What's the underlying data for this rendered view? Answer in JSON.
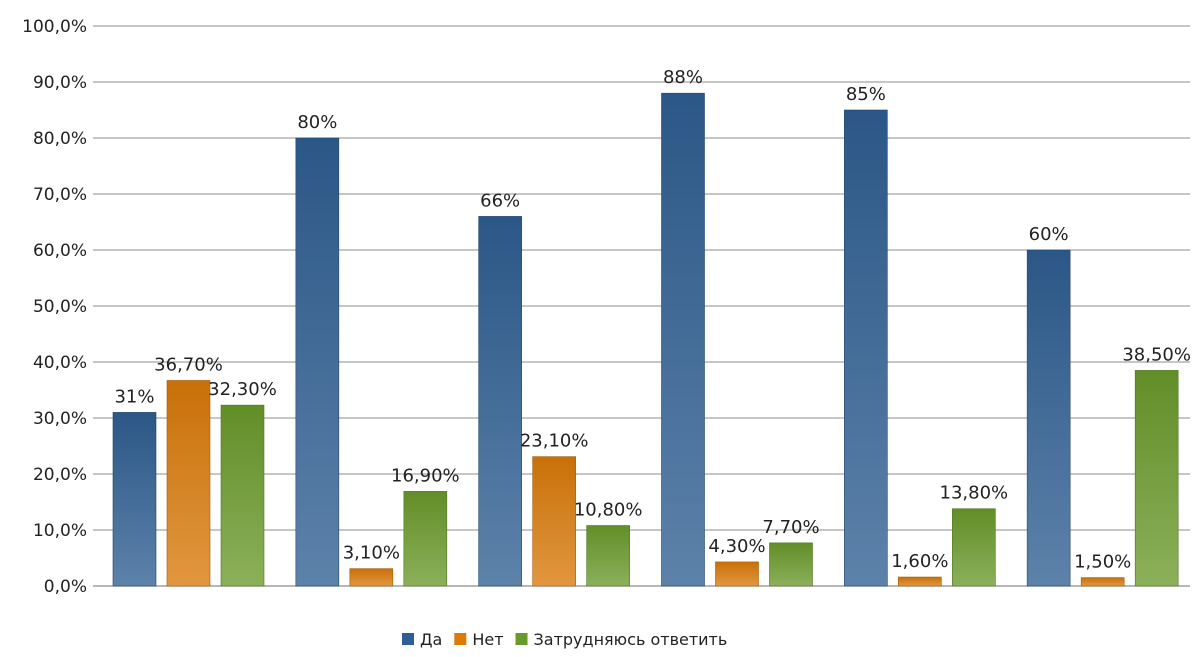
{
  "chart_data": {
    "type": "bar",
    "categories": [
      "",
      "",
      "",
      "",
      "",
      ""
    ],
    "series": [
      {
        "name": "Да",
        "color": "#2f5f92",
        "values": [
          31,
          80,
          66,
          88,
          85,
          60
        ],
        "labels": [
          "31%",
          "80%",
          "66%",
          "88%",
          "85%",
          "60%"
        ]
      },
      {
        "name": "Нет",
        "color": "#d97a0a",
        "values": [
          36.7,
          3.1,
          23.1,
          4.3,
          1.6,
          1.5
        ],
        "labels": [
          "36,70%",
          "3,10%",
          "23,10%",
          "4,30%",
          "1,60%",
          "1,50%"
        ]
      },
      {
        "name": "Затрудняюсь ответить",
        "color": "#6a9a2c",
        "values": [
          32.3,
          16.9,
          10.8,
          7.7,
          13.8,
          38.5
        ],
        "labels": [
          "32,30%",
          "16,90%",
          "10,80%",
          "7,70%",
          "13,80%",
          "38,50%"
        ]
      }
    ],
    "ylim": [
      0,
      100
    ],
    "yticks": [
      {
        "value": 0,
        "label": "0,0%"
      },
      {
        "value": 10,
        "label": "10,0%"
      },
      {
        "value": 20,
        "label": "20,0%"
      },
      {
        "value": 30,
        "label": "30,0%"
      },
      {
        "value": 40,
        "label": "40,0%"
      },
      {
        "value": 50,
        "label": "50,0%"
      },
      {
        "value": 60,
        "label": "60,0%"
      },
      {
        "value": 70,
        "label": "70,0%"
      },
      {
        "value": 80,
        "label": "80,0%"
      },
      {
        "value": 90,
        "label": "90,0%"
      },
      {
        "value": 100,
        "label": "100,0%"
      }
    ],
    "grid": true,
    "legend": "bottom-center"
  }
}
